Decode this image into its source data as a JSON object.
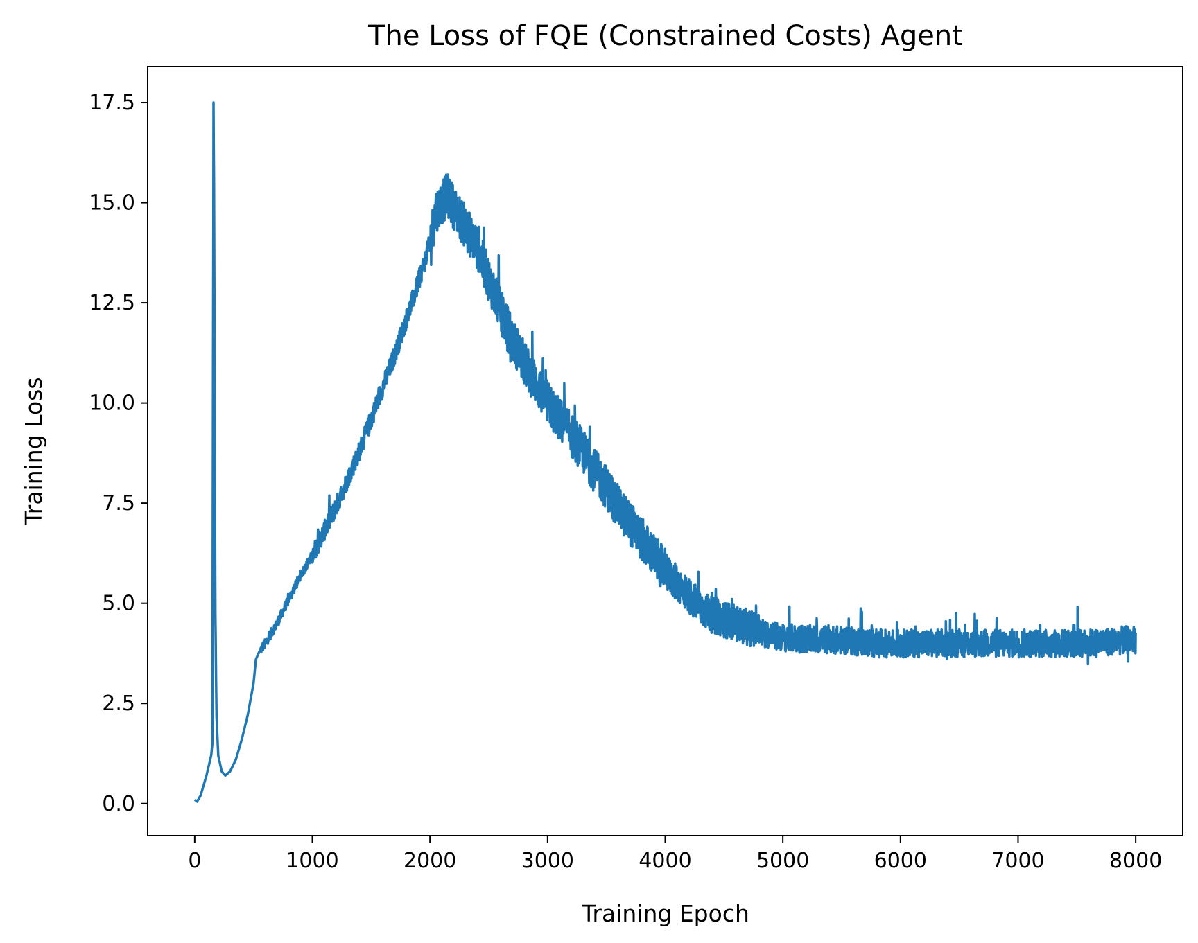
{
  "chart_data": {
    "type": "line",
    "title": "The Loss of FQE (Constrained Costs) Agent",
    "xlabel": "Training Epoch",
    "ylabel": "Training Loss",
    "xlim": [
      -400,
      8400
    ],
    "ylim": [
      -0.8,
      18.4
    ],
    "xticks": [
      0,
      1000,
      2000,
      3000,
      4000,
      5000,
      6000,
      7000,
      8000
    ],
    "xtick_labels": [
      "0",
      "1000",
      "2000",
      "3000",
      "4000",
      "5000",
      "6000",
      "7000",
      "8000"
    ],
    "yticks": [
      0.0,
      2.5,
      5.0,
      7.5,
      10.0,
      12.5,
      15.0,
      17.5
    ],
    "ytick_labels": [
      "0.0",
      "2.5",
      "5.0",
      "7.5",
      "10.0",
      "12.5",
      "15.0",
      "17.5"
    ],
    "grid": false,
    "series_color": "#1f77b4",
    "series": [
      {
        "x": [
          0,
          20,
          50,
          100,
          140,
          150,
          160,
          165,
          175,
          185,
          200,
          230,
          260,
          300,
          350,
          400,
          450,
          500,
          520,
          550,
          600,
          700,
          800,
          900,
          1000,
          1100,
          1200,
          1300,
          1400,
          1500,
          1600,
          1700,
          1800,
          1900,
          2000,
          2050,
          2100,
          2150,
          2200,
          2300,
          2400,
          2500,
          2600,
          2700,
          2800,
          2900,
          3000,
          3100,
          3200,
          3300,
          3400,
          3500,
          3600,
          3700,
          3800,
          3900,
          4000,
          4100,
          4200,
          4300,
          4400,
          4500,
          4600,
          4700,
          4800,
          4900,
          5000,
          5200,
          5400,
          5600,
          5800,
          6000,
          6200,
          6400,
          6600,
          6800,
          7000,
          7200,
          7400,
          7600,
          7800,
          8000
        ],
        "y": [
          0.1,
          0.05,
          0.2,
          0.7,
          1.2,
          1.5,
          17.5,
          15.0,
          5.0,
          2.2,
          1.2,
          0.8,
          0.7,
          0.8,
          1.1,
          1.6,
          2.2,
          3.0,
          3.6,
          3.8,
          4.0,
          4.5,
          5.1,
          5.7,
          6.2,
          6.8,
          7.4,
          8.1,
          8.8,
          9.6,
          10.4,
          11.2,
          12.1,
          13.0,
          14.0,
          14.8,
          15.0,
          15.2,
          14.9,
          14.4,
          13.9,
          13.1,
          12.3,
          11.6,
          11.0,
          10.5,
          10.0,
          9.6,
          9.2,
          8.8,
          8.3,
          7.9,
          7.4,
          7.0,
          6.6,
          6.2,
          5.8,
          5.5,
          5.2,
          4.9,
          4.7,
          4.6,
          4.5,
          4.4,
          4.3,
          4.2,
          4.15,
          4.1,
          4.1,
          4.05,
          4.0,
          4.0,
          4.0,
          4.0,
          4.0,
          4.0,
          4.0,
          4.0,
          4.0,
          4.0,
          4.05,
          4.1
        ]
      }
    ]
  }
}
